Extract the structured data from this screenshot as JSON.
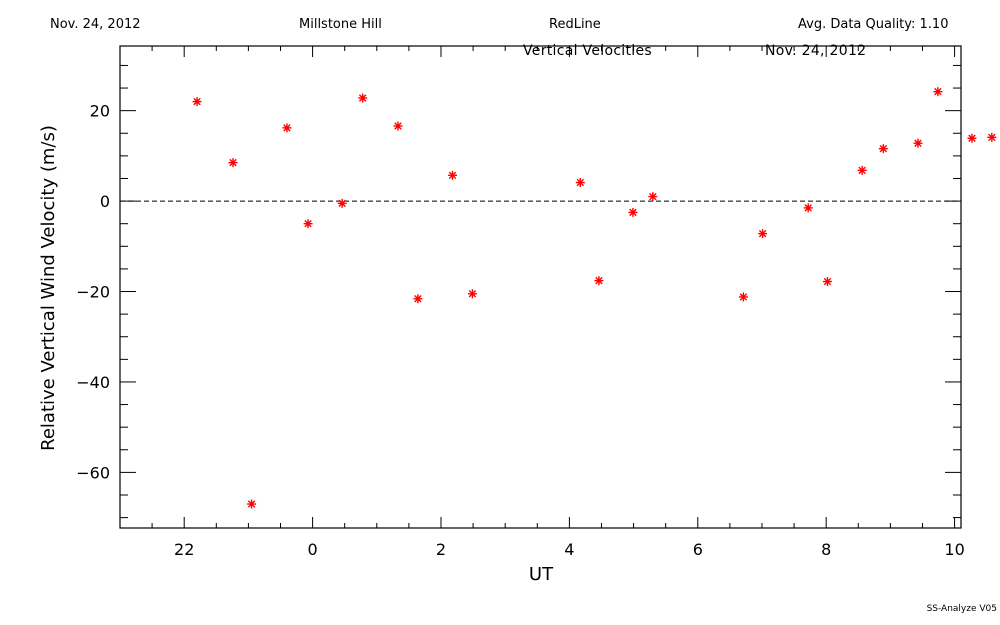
{
  "header": {
    "date": "Nov. 24, 2012",
    "site": "Millstone Hill",
    "emission": "RedLine",
    "quality": "Avg. Data Quality: 1.10"
  },
  "plot_titles": {
    "title": "Vertical Velocities",
    "date": "Nov. 24, 2012"
  },
  "footer": "SS-Analyze V05",
  "colors": {
    "points": "#ff0000",
    "axis": "#000000"
  },
  "chart_data": {
    "type": "scatter",
    "marker": "asterisk",
    "xlabel": "UT",
    "ylabel": "Relative Vertical Wind Velocity (m/s)",
    "xlim": [
      -1.0,
      12.1
    ],
    "ylim": [
      -72.3,
      34.3
    ],
    "x_ticks": [
      {
        "v": 0.0,
        "label": "22"
      },
      {
        "v": 2.0,
        "label": "0"
      },
      {
        "v": 4.0,
        "label": "2"
      },
      {
        "v": 6.0,
        "label": "4"
      },
      {
        "v": 8.0,
        "label": "6"
      },
      {
        "v": 10.0,
        "label": "8"
      },
      {
        "v": 12.0,
        "label": "10"
      }
    ],
    "x_minor_step": 0.5,
    "y_ticks": [
      -60,
      -40,
      -20,
      0,
      20
    ],
    "y_minor_step": 5,
    "zero_line": "dashed",
    "x_unit_note": "values are hours after 22 UT",
    "points": [
      {
        "x": 0.2,
        "y": 22
      },
      {
        "x": 0.76,
        "y": 8.5
      },
      {
        "x": 1.05,
        "y": -67
      },
      {
        "x": 1.6,
        "y": 16.2
      },
      {
        "x": 1.93,
        "y": -5
      },
      {
        "x": 2.46,
        "y": -0.5
      },
      {
        "x": 2.78,
        "y": 22.8
      },
      {
        "x": 3.33,
        "y": 16.6
      },
      {
        "x": 3.64,
        "y": -21.6
      },
      {
        "x": 4.18,
        "y": 5.7
      },
      {
        "x": 4.49,
        "y": -20.5
      },
      {
        "x": 6.17,
        "y": 4.1
      },
      {
        "x": 6.46,
        "y": -17.6
      },
      {
        "x": 6.99,
        "y": -2.5
      },
      {
        "x": 7.3,
        "y": 1.0
      },
      {
        "x": 8.71,
        "y": -21.2
      },
      {
        "x": 9.01,
        "y": -7.2
      },
      {
        "x": 9.72,
        "y": -1.5
      },
      {
        "x": 10.02,
        "y": -17.8
      },
      {
        "x": 10.56,
        "y": 6.8
      },
      {
        "x": 10.89,
        "y": 11.6
      },
      {
        "x": 11.43,
        "y": 12.8
      },
      {
        "x": 11.74,
        "y": 24.2
      },
      {
        "x": 12.27,
        "y": 13.9
      },
      {
        "x": 12.58,
        "y": 14.1
      }
    ]
  }
}
